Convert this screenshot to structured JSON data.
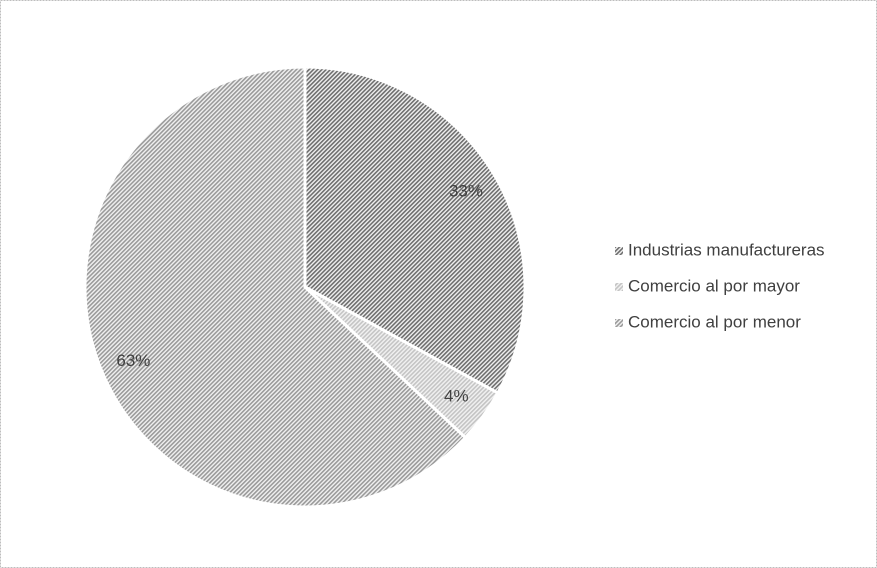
{
  "chart_data": {
    "type": "pie",
    "categories": [
      "Industrias manufactureras",
      "Comercio al por mayor",
      "Comercio al por menor"
    ],
    "values": [
      33,
      4,
      63
    ],
    "value_labels": [
      "33%",
      "4%",
      "63%"
    ],
    "colors": [
      "#6e6e6e",
      "#c4c4c4",
      "#9a9a9a"
    ],
    "legend": "right"
  }
}
